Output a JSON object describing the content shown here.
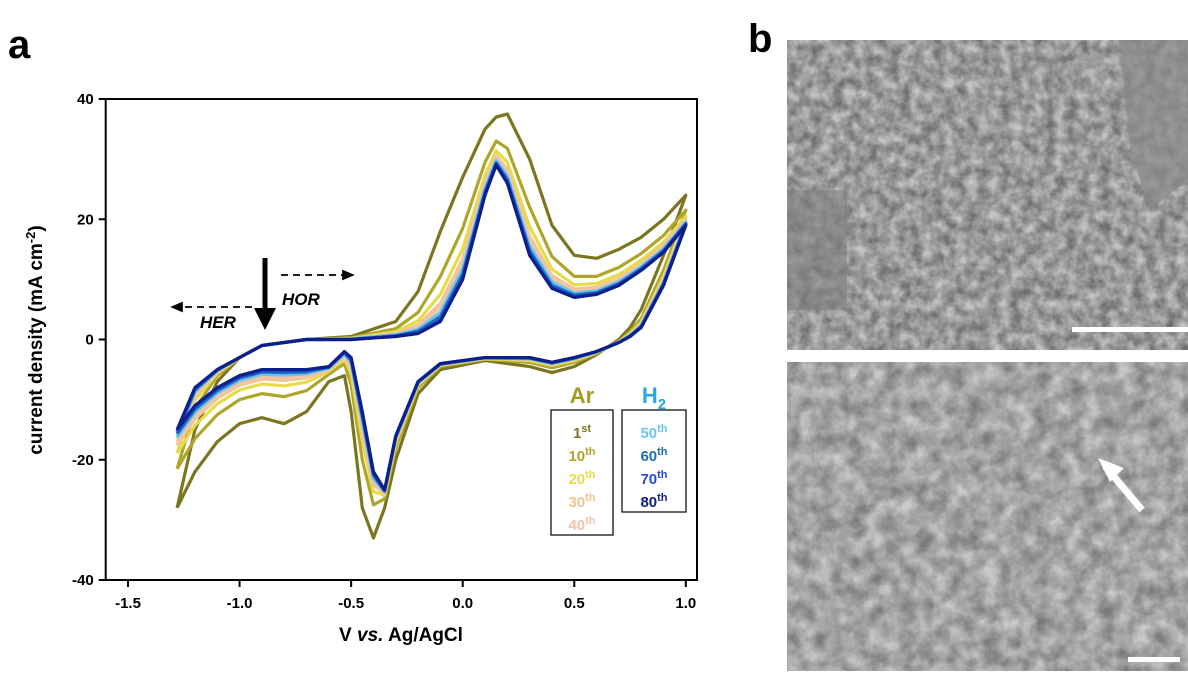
{
  "chart_data": {
    "type": "line",
    "panel_labels": [
      "a",
      "b"
    ],
    "xlabel": {
      "pre": "V ",
      "italic": "vs.",
      "post": " Ag/AgCl"
    },
    "ylabel": {
      "text": "current density (mA cm",
      "sup": "-2",
      "end": ")"
    },
    "annotations": [
      "HOR",
      "HER"
    ],
    "xlim": [
      -1.6,
      1.05
    ],
    "ylim": [
      -40,
      40
    ],
    "xticks": [
      -1.5,
      {
        "value": -1,
        "label": "-1.0"
      },
      -0.5,
      {
        "value": 0,
        "label": "0.0"
      },
      0.5,
      {
        "value": 1,
        "label": "1.0"
      }
    ],
    "yticks": [
      40,
      20,
      0,
      -20,
      -40
    ],
    "x": [
      -1.28,
      -1.2,
      -1.1,
      -1.0,
      -0.9,
      -0.7,
      -0.5,
      -0.3,
      -0.2,
      -0.1,
      0.0,
      0.1,
      0.15,
      0.2,
      0.3,
      0.4,
      0.5,
      0.6,
      0.7,
      0.8,
      0.9,
      1.0,
      0.9,
      0.8,
      0.75,
      0.7,
      0.6,
      0.5,
      0.4,
      0.3,
      0.1,
      -0.1,
      -0.2,
      -0.3,
      -0.35,
      -0.4,
      -0.45,
      -0.5,
      -0.53,
      -0.6,
      -0.7,
      -0.8,
      -0.9,
      -1.0,
      -1.1,
      -1.2,
      -1.28
    ],
    "series": [
      {
        "name": "1st",
        "gas": "Ar",
        "color": "#7b7520",
        "values": [
          -28,
          -15,
          -7,
          -3,
          -1,
          0,
          0.5,
          3,
          8,
          18,
          27,
          35,
          37,
          37.5,
          30,
          19,
          14,
          13.5,
          15,
          17,
          20,
          24,
          14,
          5,
          2,
          0,
          -2.5,
          -4.5,
          -5.5,
          -4.5,
          -3.5,
          -5,
          -9,
          -20,
          -28,
          -33,
          -28,
          -12,
          -6,
          -7,
          -12,
          -14,
          -13,
          -14,
          -17,
          -22,
          -28
        ]
      },
      {
        "name": "10th",
        "gas": "Ar",
        "color": "#aea52a",
        "values": [
          -21.5,
          -11.5,
          -6,
          -3,
          -1,
          0,
          0.3,
          1.8,
          4.5,
          10.5,
          18.5,
          29.5,
          33,
          31.8,
          22,
          13.8,
          10.5,
          10.5,
          12,
          14.3,
          17.3,
          21.5,
          11.5,
          3.5,
          1.3,
          -0.3,
          -2.3,
          -3.8,
          -4.7,
          -3.8,
          -3.3,
          -4.5,
          -8,
          -18,
          -26.5,
          -27.5,
          -20,
          -7.5,
          -4,
          -5.8,
          -8.5,
          -9.5,
          -9,
          -10,
          -12.5,
          -16.5,
          -21.5
        ]
      },
      {
        "name": "20th",
        "gas": "Ar",
        "color": "#e6dc4a",
        "values": [
          -18.9,
          -10.1,
          -5.6,
          -3,
          -1,
          0,
          0.2,
          1.3,
          3.1,
          7.5,
          15.1,
          27.3,
          31.4,
          29.5,
          18.8,
          11.7,
          9.1,
          9.3,
          10.8,
          13.2,
          16.2,
          20.5,
          10.5,
          2.9,
          1,
          -0.4,
          -2.2,
          -3.5,
          -4.3,
          -3.5,
          -3.2,
          -4.3,
          -7.6,
          -17.2,
          -25.9,
          -25.3,
          -16.8,
          -5.7,
          -3.2,
          -5.3,
          -7.1,
          -7.7,
          -7.4,
          -8.4,
          -10.7,
          -14.3,
          -18.9
        ]
      },
      {
        "name": "30th",
        "gas": "Ar",
        "color": "#f0c590",
        "values": [
          -17.6,
          -9.4,
          -5.4,
          -3,
          -1,
          0,
          0.1,
          1,
          2.4,
          6,
          13.4,
          26.2,
          30.6,
          28.3,
          17.2,
          10.6,
          8.4,
          8.7,
          10.2,
          12.6,
          15.6,
          20,
          10,
          2.6,
          0.8,
          -0.4,
          -2.1,
          -3.3,
          -4.1,
          -3.3,
          -3.1,
          -4.2,
          -7.4,
          -16.8,
          -25.6,
          -24.2,
          -15.2,
          -4.8,
          -2.8,
          -5,
          -6.4,
          -6.8,
          -6.6,
          -7.6,
          -9.8,
          -13.2,
          -17.6
        ]
      },
      {
        "name": "40th",
        "gas": "Ar",
        "color": "#f5c2aa",
        "values": [
          -17,
          -9.1,
          -5.3,
          -3,
          -1,
          0,
          0.1,
          0.9,
          2.1,
          5.3,
          12.6,
          25.7,
          30.2,
          27.7,
          16.4,
          10.1,
          8.1,
          8.4,
          9.9,
          12.3,
          15.3,
          19.8,
          9.8,
          2.5,
          0.7,
          -0.4,
          -2.1,
          -3.2,
          -4.1,
          -3.2,
          -3.1,
          -4.2,
          -7.3,
          -16.6,
          -25.5,
          -23.7,
          -14.4,
          -4.4,
          -2.6,
          -4.9,
          -6.1,
          -6.4,
          -6.2,
          -7.2,
          -9.4,
          -12.7,
          -17
        ]
      },
      {
        "name": "50th",
        "gas": "H2",
        "color": "#6cc3ef",
        "values": [
          -16.3,
          -8.7,
          -5.2,
          -3,
          -1,
          0,
          0.1,
          0.8,
          1.7,
          4.5,
          11.7,
          25.1,
          29.8,
          27.2,
          15.6,
          9.6,
          7.7,
          8.1,
          9.6,
          12.1,
          15.1,
          19.5,
          9.5,
          2.3,
          0.7,
          -0.5,
          -2.1,
          -3.2,
          -4,
          -3.2,
          -3.1,
          -4.1,
          -7.2,
          -16.4,
          -25.3,
          -23.1,
          -13.6,
          -3.9,
          -2.4,
          -4.8,
          -5.7,
          -5.9,
          -5.8,
          -6.8,
          -8.9,
          -12.1,
          -16.3
        ]
      },
      {
        "name": "60th",
        "gas": "H2",
        "color": "#1a6fb5",
        "values": [
          -15.7,
          -8.4,
          -5.1,
          -3,
          -1,
          0,
          0,
          0.6,
          1.4,
          3.8,
          10.9,
          24.6,
          29.4,
          26.6,
          14.8,
          9,
          7.4,
          7.8,
          9.3,
          11.8,
          14.8,
          19.3,
          9.3,
          2.2,
          0.6,
          -0.5,
          -2,
          -3.1,
          -3.9,
          -3.1,
          -3,
          -4.1,
          -7.1,
          -16.2,
          -25.2,
          -22.6,
          -12.8,
          -3.5,
          -2.2,
          -4.6,
          -5.4,
          -5.5,
          -5.4,
          -6.4,
          -8.5,
          -11.6,
          -15.7
        ]
      },
      {
        "name": "70th",
        "gas": "H2",
        "color": "#2648d8",
        "values": [
          -15.3,
          -8.1,
          -5,
          -3,
          -1,
          0,
          0,
          0.6,
          1.1,
          3.3,
          10.3,
          24.2,
          29.2,
          26.2,
          14.3,
          8.7,
          7.1,
          7.6,
          9.1,
          11.6,
          14.6,
          19.1,
          9.1,
          2.1,
          0.5,
          -0.5,
          -2,
          -3,
          -3.8,
          -3,
          -3,
          -4,
          -7,
          -16.1,
          -25.1,
          -22.2,
          -12.3,
          -3.2,
          -2.1,
          -4.6,
          -5.1,
          -5.2,
          -5.2,
          -6.2,
          -8.2,
          -11.2,
          -15.3
        ]
      },
      {
        "name": "80th",
        "gas": "H2",
        "color": "#0d1f8a",
        "values": [
          -15,
          -8,
          -5,
          -3,
          -1,
          0,
          0,
          0.5,
          1,
          3,
          10,
          24,
          29,
          26,
          14,
          8.5,
          7,
          7.5,
          9,
          11.5,
          14.5,
          19,
          9,
          2,
          0.5,
          -0.5,
          -2,
          -3,
          -3.8,
          -3,
          -3,
          -4,
          -7,
          -16,
          -25,
          -22,
          -12,
          -3,
          -2,
          -4.5,
          -5,
          -5,
          -5,
          -6,
          -8,
          -11,
          -15
        ]
      }
    ]
  }
}
